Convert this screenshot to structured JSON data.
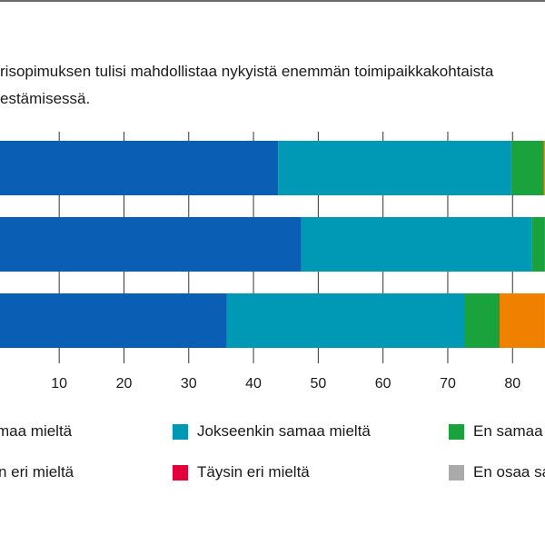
{
  "question": {
    "line1": "risopimuksen tulisi mahdollistaa nykyistä enemmän toimipaikkakohtaista",
    "line2": "estämisessä."
  },
  "colors": {
    "frame": "#6b6b6b",
    "grid": "#333333"
  },
  "chart_data": {
    "type": "bar",
    "orientation": "horizontal",
    "stacked": true,
    "categories": [
      "",
      "",
      ""
    ],
    "xlim": [
      1,
      85
    ],
    "x_ticks": [
      10,
      20,
      30,
      40,
      50,
      60,
      70,
      80
    ],
    "grid": true,
    "legend_position": "bottom",
    "series": [
      {
        "name": "…maa mieltä",
        "label_visible": "maa mieltä",
        "color": "#0a5fb4",
        "values": [
          43.8,
          47.4,
          35.9
        ]
      },
      {
        "name": "Jokseenkin samaa mieltä",
        "label_visible": "Jokseenkin samaa mieltä",
        "color": "#0099b5",
        "values": [
          36,
          35.6,
          36.7
        ]
      },
      {
        "name": "En samaa…",
        "label_visible": "En samaa",
        "color": "#1aa33c",
        "values": [
          5,
          2,
          5.4
        ]
      },
      {
        "name": "…n eri mieltä",
        "label_visible": "n eri mieltä",
        "color": "#f08000",
        "values": [
          0.2,
          0,
          7
        ]
      },
      {
        "name": "Täysin eri mieltä",
        "label_visible": "Täysin eri mieltä",
        "color": "#e4003b",
        "values": [
          0,
          0,
          0
        ]
      },
      {
        "name": "En osaa sa…",
        "label_visible": "En osaa sa",
        "color": "#aaaaaa",
        "values": [
          0,
          0,
          0
        ]
      }
    ]
  }
}
